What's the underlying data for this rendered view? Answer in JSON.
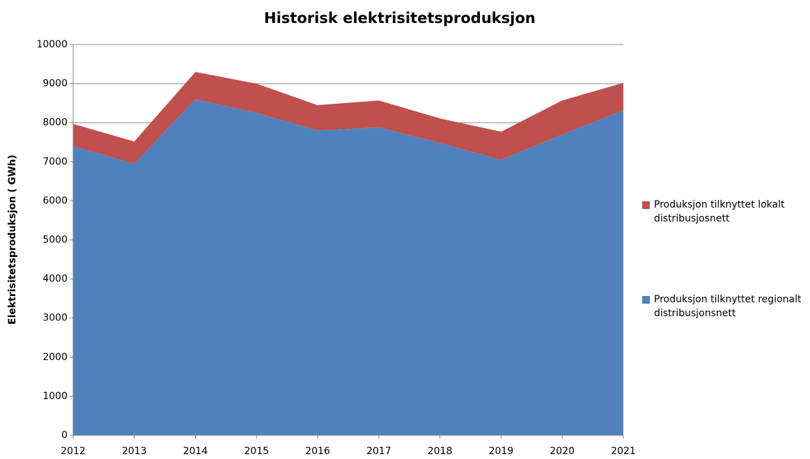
{
  "chart_data": {
    "type": "stacked_area",
    "title": "Historisk elektrisitetsproduksjon",
    "y_label": "Elektrisitetsproduksjon ( GWh)",
    "x": [
      2012,
      2013,
      2014,
      2015,
      2016,
      2017,
      2018,
      2019,
      2020,
      2021
    ],
    "xlim": [
      2012,
      2021
    ],
    "xticks": [
      2012,
      2013,
      2014,
      2015,
      2016,
      2017,
      2018,
      2019,
      2020,
      2021
    ],
    "ylim": [
      0,
      10000
    ],
    "yticks": [
      0,
      1000,
      2000,
      3000,
      4000,
      5000,
      6000,
      7000,
      8000,
      9000,
      10000
    ],
    "grid": true,
    "series": [
      {
        "name": "Produksjon tilknyttet regionalt distribusjonsnett",
        "color": "#4f81bd",
        "values": [
          7400,
          6950,
          8600,
          8250,
          7800,
          7880,
          7480,
          7050,
          7700,
          8320
        ]
      },
      {
        "name": "Produksjon tilknyttet lokalt distribusjosnett",
        "color": "#c0504d",
        "values": [
          570,
          570,
          700,
          750,
          650,
          690,
          630,
          720,
          870,
          700
        ]
      }
    ]
  }
}
